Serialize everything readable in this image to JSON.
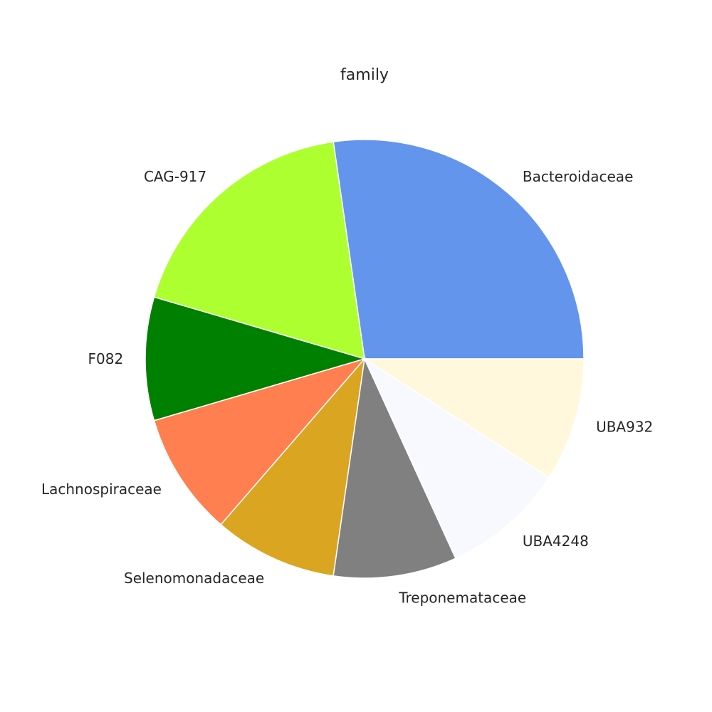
{
  "chart_data": {
    "type": "pie",
    "title": "family",
    "start_angle_deg": 0,
    "direction": "counterclockwise",
    "slices": [
      {
        "label": "Bacteroidaceae",
        "value": 27.3,
        "color": "#6495ED"
      },
      {
        "label": "CAG-917",
        "value": 18.2,
        "color": "#ADFF2F"
      },
      {
        "label": "F082",
        "value": 9.1,
        "color": "#008000"
      },
      {
        "label": "Lachnospiraceae",
        "value": 9.1,
        "color": "#FF7F50"
      },
      {
        "label": "Selenomonadaceae",
        "value": 9.1,
        "color": "#DAA520"
      },
      {
        "label": "Treponemataceae",
        "value": 9.1,
        "color": "#808080"
      },
      {
        "label": "UBA4248",
        "value": 9.1,
        "color": "#F8F8FF"
      },
      {
        "label": "UBA932",
        "value": 9.1,
        "color": "#FFF8DC"
      }
    ]
  }
}
